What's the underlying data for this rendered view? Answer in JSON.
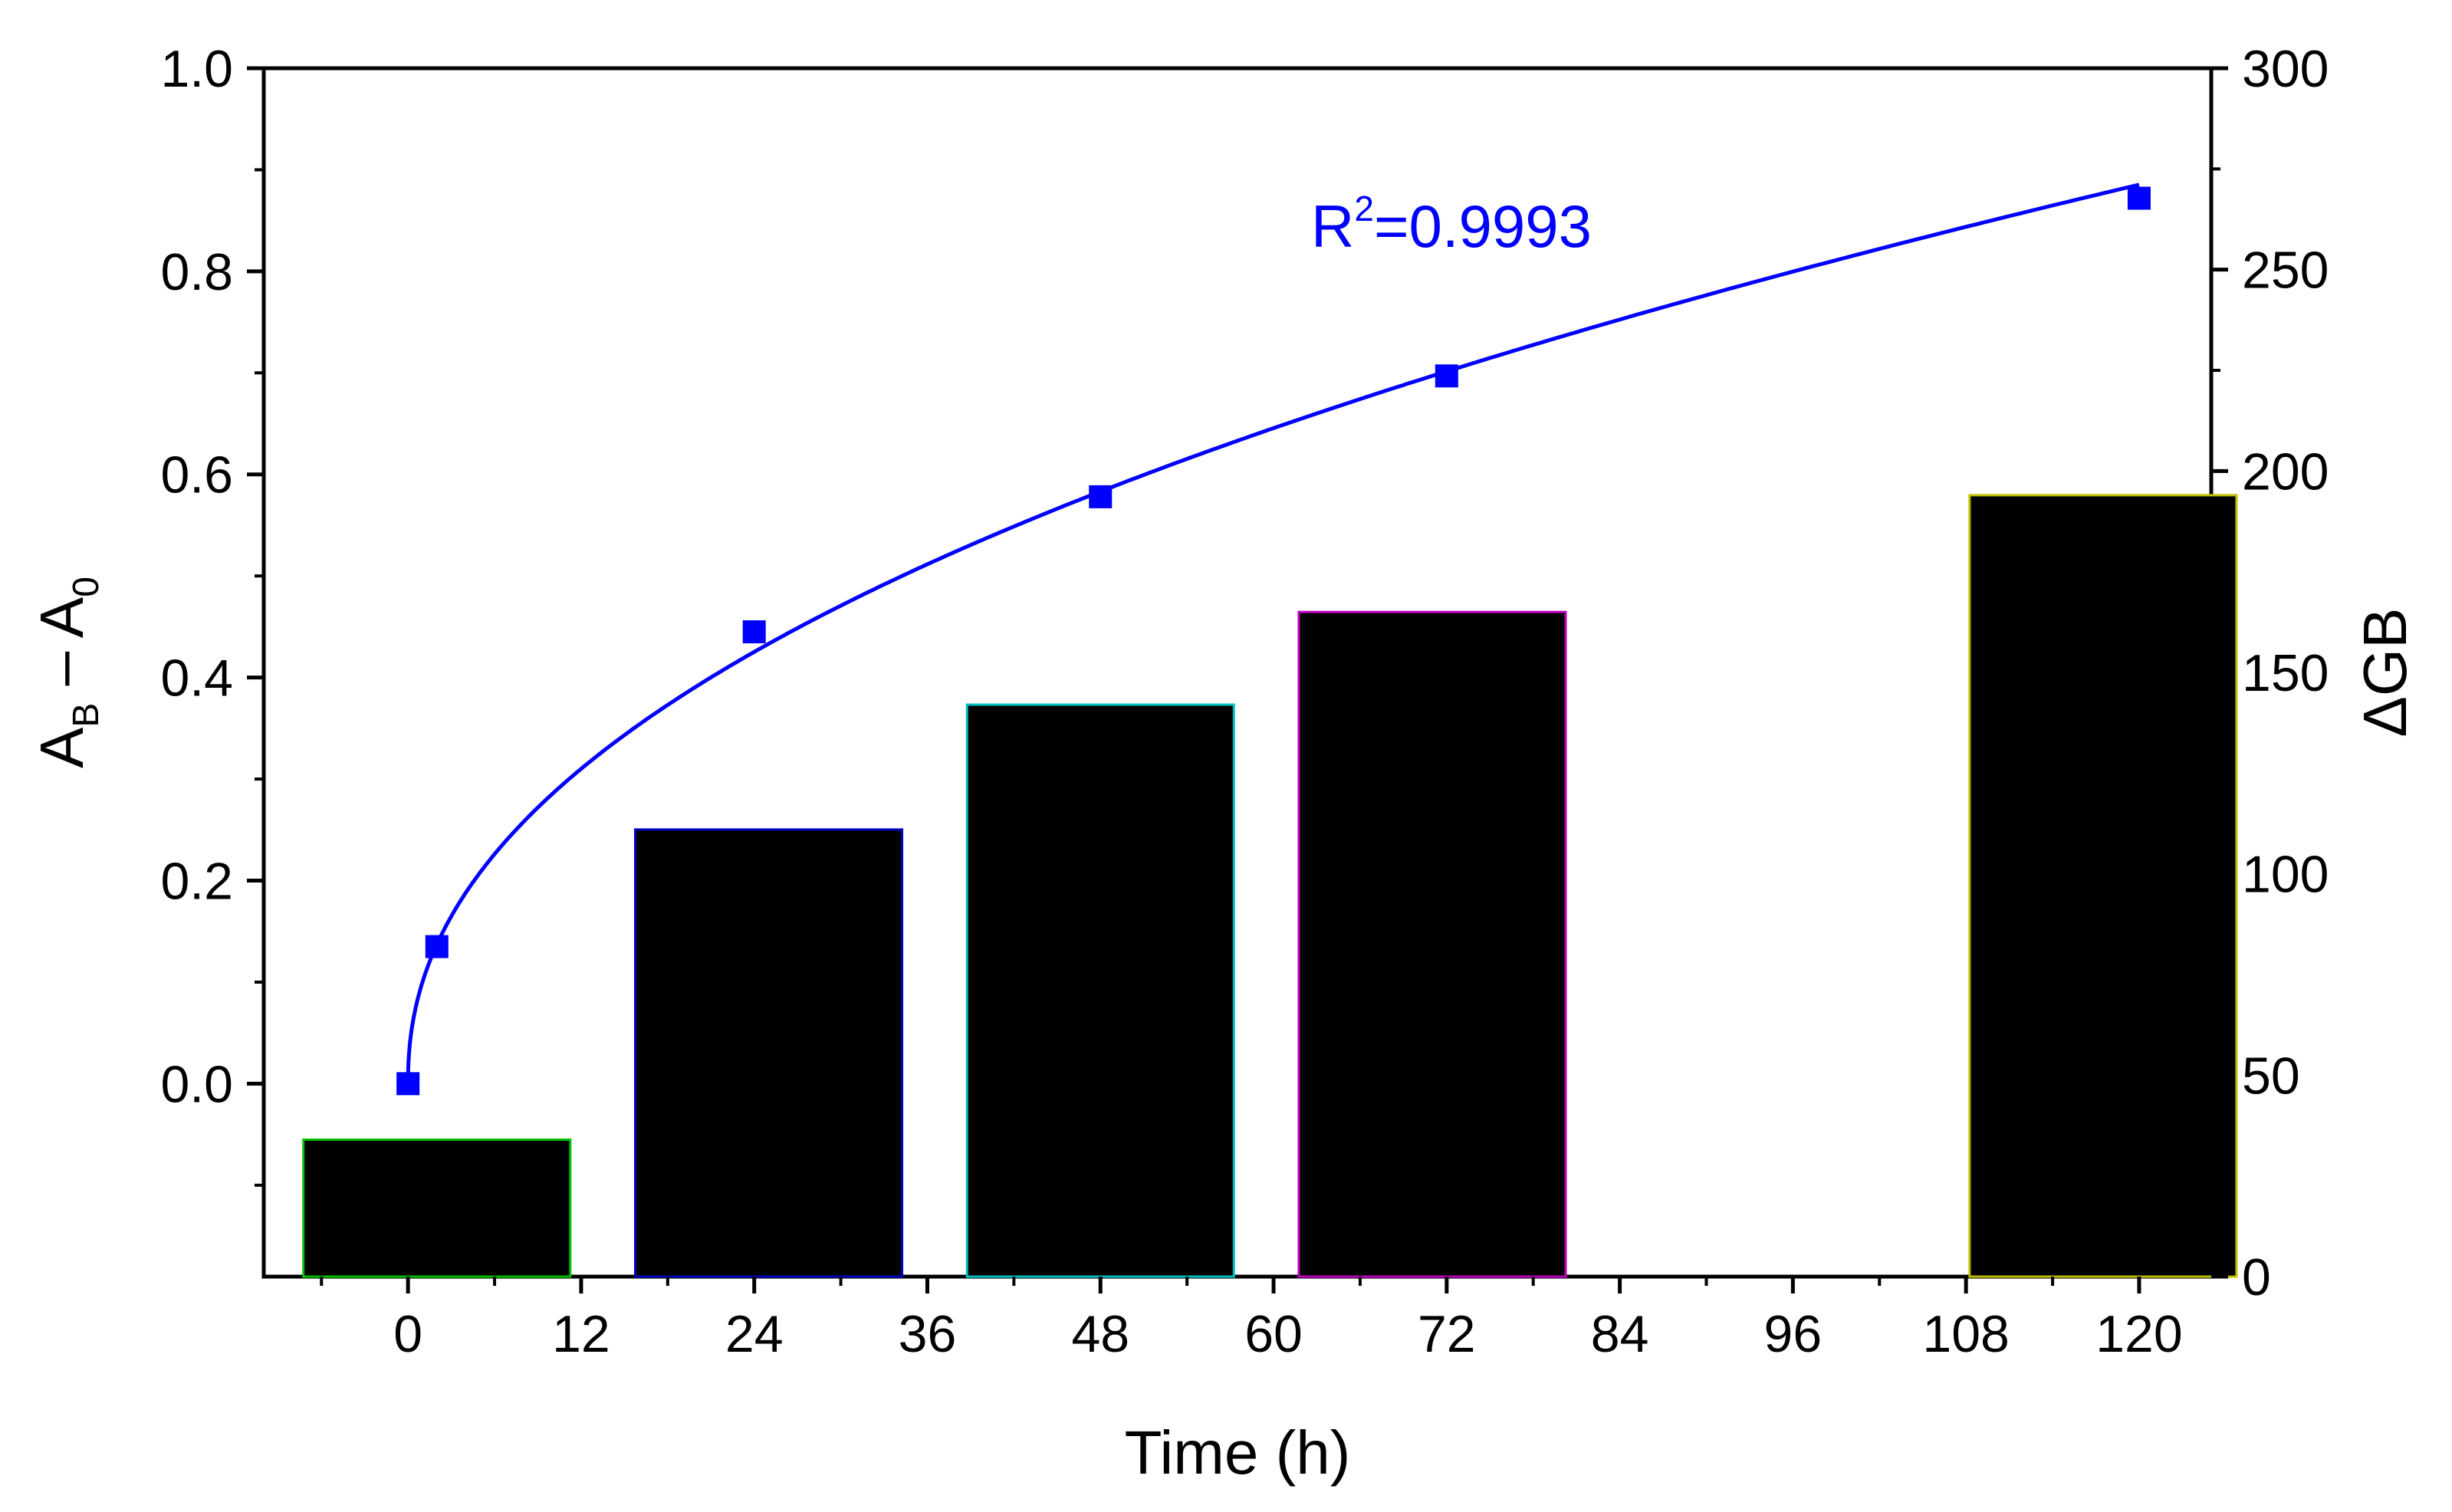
{
  "chart_data": {
    "type": "bar+line",
    "xlabel": "Time (h)",
    "ylabel_left": {
      "main": "A",
      "sub1": "B",
      "dash": " – A",
      "sub2": "0"
    },
    "ylabel_right": "ΔGB",
    "x_range": [
      -10,
      125
    ],
    "x_ticks": [
      0,
      12,
      24,
      36,
      48,
      60,
      72,
      84,
      96,
      108,
      120
    ],
    "y_left_range": [
      -0.19,
      1.0
    ],
    "y_left_ticks": [
      "0.0",
      "0.2",
      "0.4",
      "0.6",
      "0.8",
      "1.0"
    ],
    "y_right_range": [
      0,
      300
    ],
    "y_right_ticks": [
      0,
      50,
      100,
      150,
      200,
      250,
      300
    ],
    "bars": [
      {
        "x": 2,
        "value": 34,
        "edge_color": "#00c000"
      },
      {
        "x": 25,
        "value": 111,
        "edge_color": "#0000c0"
      },
      {
        "x": 48,
        "value": 142,
        "edge_color": "#00c0c0"
      },
      {
        "x": 71,
        "value": 165,
        "edge_color": "#c000c0"
      },
      {
        "x": 117.5,
        "value": 194,
        "edge_color": "#c0c000"
      }
    ],
    "bar_width": 18.5,
    "series": [
      {
        "name": "A_B - A_0",
        "axis": "left",
        "color": "#0000ff",
        "points": [
          [
            0,
            0.0
          ],
          [
            2,
            0.135
          ],
          [
            24,
            0.445
          ],
          [
            48,
            0.578
          ],
          [
            72,
            0.697
          ],
          [
            120,
            0.872
          ]
        ]
      }
    ],
    "annotation": {
      "text": "R",
      "sup": "2",
      "rest": "=0.9993",
      "color": "#0000ff"
    }
  }
}
